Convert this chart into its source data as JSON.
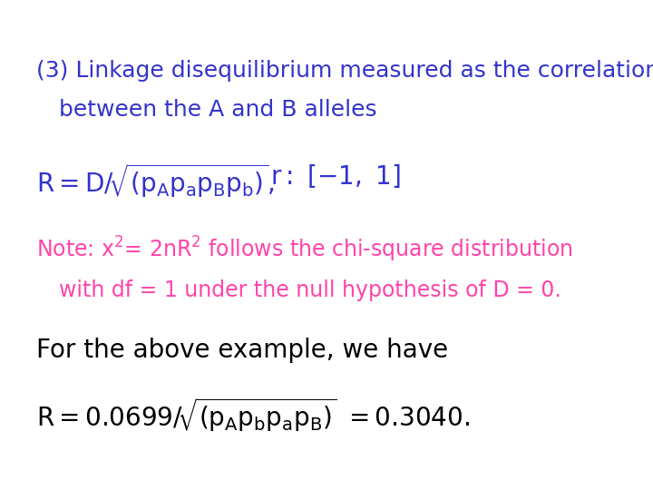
{
  "bg_color": "#ffffff",
  "title_line1": "(3) Linkage disequilibrium measured as the correlation",
  "title_line2": "between the A and B alleles",
  "title_color": "#3333cc",
  "formula1_color": "#3333cc",
  "note_color": "#ff44aa",
  "black_color": "#000000",
  "font_size_title": 18,
  "font_size_formula": 20,
  "font_size_note": 17,
  "font_size_body": 20
}
